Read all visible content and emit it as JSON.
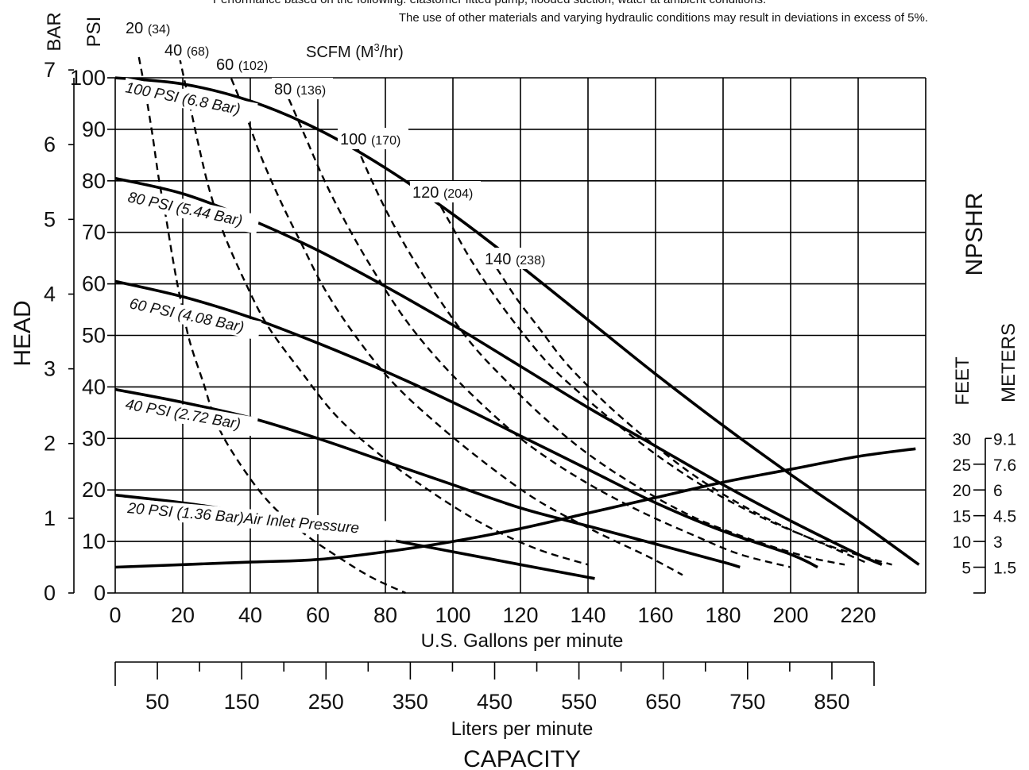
{
  "note": {
    "line1": "Performance based on the following: elastomer fitted pump, flooded suction, water at ambient conditions.",
    "line2": "The use of other materials and varying hydraulic conditions may result in deviations in excess of 5%."
  },
  "labels": {
    "bar": "BAR",
    "psi": "PSI",
    "head": "HEAD",
    "scfm_title": "SCFM (M",
    "scfm_sup": "3",
    "scfm_close": "/hr)",
    "npshr": "NPSHR",
    "feet": "FEET",
    "meters": "METERS",
    "gpm_axis": "U.S. Gallons per minute",
    "lpm_axis": "Liters per minute",
    "capacity": "CAPACITY"
  },
  "chart_data": {
    "type": "line",
    "x_axis": {
      "label": "U.S. Gallons per minute",
      "range": [
        0,
        240
      ],
      "ticks": [
        "0",
        "20",
        "40",
        "60",
        "80",
        "100",
        "120",
        "140",
        "160",
        "180",
        "200",
        "220"
      ]
    },
    "x2_axis": {
      "label": "Liters per minute",
      "range": [
        0,
        900
      ],
      "ticks": [
        "50",
        "150",
        "250",
        "350",
        "450",
        "550",
        "650",
        "750",
        "850"
      ]
    },
    "y_axis_psi": {
      "label": "PSI",
      "range": [
        0,
        100
      ],
      "ticks": [
        "0",
        "10",
        "20",
        "30",
        "40",
        "50",
        "60",
        "70",
        "80",
        "90",
        "100"
      ]
    },
    "y_axis_bar": {
      "label": "BAR",
      "range": [
        0,
        7
      ],
      "ticks": [
        "0",
        "1",
        "2",
        "3",
        "4",
        "5",
        "6",
        "7"
      ]
    },
    "npshr_axis": {
      "feet": [
        "30",
        "25",
        "20",
        "15",
        "10",
        "5"
      ],
      "meters": [
        "9.1",
        "7.6",
        "6",
        "4.5",
        "3",
        "1.5"
      ]
    },
    "grid": true,
    "head_series": [
      {
        "name": "100 PSI",
        "name_paren": "(6.8 Bar)",
        "x": [
          0,
          20,
          40,
          60,
          80,
          100,
          120,
          140,
          160,
          180,
          200,
          220,
          238
        ],
        "y": [
          100,
          98.8,
          95.5,
          90,
          82.5,
          73.5,
          63.5,
          53,
          42.5,
          32.5,
          23,
          14,
          5.5
        ]
      },
      {
        "name": "80 PSI",
        "name_paren": "(5.44 Bar)",
        "x": [
          0,
          20,
          40,
          60,
          80,
          100,
          120,
          140,
          160,
          180,
          200,
          220,
          227
        ],
        "y": [
          80.5,
          77.5,
          72.5,
          66.5,
          59.5,
          52,
          44,
          36,
          28.5,
          21,
          14,
          7.5,
          5.5
        ]
      },
      {
        "name": "60 PSI",
        "name_paren": "(4.08 Bar)",
        "x": [
          0,
          20,
          40,
          60,
          80,
          100,
          120,
          140,
          160,
          180,
          200,
          208
        ],
        "y": [
          60.5,
          57.5,
          53.5,
          48.5,
          43,
          37,
          30.5,
          24,
          17.5,
          12,
          7.5,
          5
        ]
      },
      {
        "name": "40 PSI",
        "name_paren": "(2.72 Bar)",
        "x": [
          0,
          20,
          40,
          60,
          80,
          100,
          120,
          140,
          160,
          180,
          185
        ],
        "y": [
          39.5,
          37,
          34,
          30,
          25.5,
          21,
          16.5,
          13,
          9.5,
          6,
          5
        ]
      },
      {
        "name": "20 PSI",
        "name_paren": "(1.36 Bar)",
        "suffix": "Air Inlet Pressure",
        "x": [
          0,
          20,
          40,
          60,
          80,
          100,
          120,
          142
        ],
        "y": [
          19,
          17.5,
          15.5,
          13,
          10.5,
          8,
          5.5,
          2.8
        ]
      }
    ],
    "air_series": [
      {
        "name": "20",
        "name_paren": "(34)",
        "x": [
          7,
          9,
          11,
          13,
          15,
          17,
          19,
          22,
          26,
          30,
          36,
          45,
          55,
          66,
          76,
          86
        ],
        "y": [
          104,
          97,
          89,
          80,
          73,
          65,
          58,
          49,
          41,
          33,
          26,
          18,
          12,
          7,
          3,
          0
        ]
      },
      {
        "name": "40",
        "name_paren": "(68)",
        "x": [
          19,
          22,
          25,
          28,
          32,
          38,
          45,
          55,
          66,
          80,
          95,
          110,
          125,
          140
        ],
        "y": [
          104,
          95,
          86,
          78,
          70,
          61,
          52,
          43,
          34,
          26,
          19,
          13,
          8.5,
          5.5
        ]
      },
      {
        "name": "60",
        "name_paren": "(102)",
        "x": [
          33,
          38,
          43,
          49,
          55,
          62,
          71,
          82,
          95,
          110,
          125,
          142,
          158,
          168
        ],
        "y": [
          102,
          94,
          85,
          76,
          68,
          59,
          50,
          41,
          33,
          25,
          18,
          12,
          7,
          3.5
        ]
      },
      {
        "name": "80",
        "name_paren": "(136)",
        "x": [
          50,
          56,
          62,
          69,
          77,
          86,
          96,
          108,
          122,
          138,
          155,
          172,
          185,
          200
        ],
        "y": [
          98,
          89,
          80,
          71,
          62,
          53,
          45,
          37,
          29,
          22,
          16,
          11,
          7.5,
          5
        ]
      },
      {
        "name": "100",
        "name_paren": "(170)",
        "x": [
          70,
          76,
          82,
          89,
          97,
          106,
          116,
          127,
          140,
          155,
          172,
          190,
          205,
          216
        ],
        "y": [
          89,
          80,
          72,
          64,
          56,
          48,
          41,
          34,
          27,
          20.5,
          14.5,
          10,
          7,
          5.5
        ]
      },
      {
        "name": "120",
        "name_paren": "(204)",
        "x": [
          93,
          99,
          105,
          112,
          120,
          129,
          139,
          150,
          162,
          176,
          192,
          208,
          222
        ],
        "y": [
          79,
          72,
          65,
          58,
          51,
          44,
          38,
          32,
          26,
          20,
          14.5,
          10,
          6
        ]
      },
      {
        "name": "140",
        "name_paren": "(238)",
        "x": [
          113,
          119,
          126,
          133,
          141,
          150,
          160,
          171,
          183,
          196,
          210,
          222,
          230
        ],
        "y": [
          63,
          57,
          51,
          45,
          39.5,
          34,
          28.5,
          23,
          18,
          13.5,
          9.5,
          7,
          5.5
        ]
      }
    ],
    "npshr_series": {
      "name": "NPSHR",
      "x": [
        0,
        20,
        40,
        60,
        80,
        100,
        120,
        140,
        160,
        180,
        200,
        220,
        237
      ],
      "y": [
        5,
        5.5,
        6,
        6.5,
        8,
        10,
        12.5,
        15.5,
        18.5,
        21.5,
        24,
        26.5,
        28
      ]
    }
  },
  "colors": {
    "ink": "#000000",
    "background": "#ffffff"
  }
}
